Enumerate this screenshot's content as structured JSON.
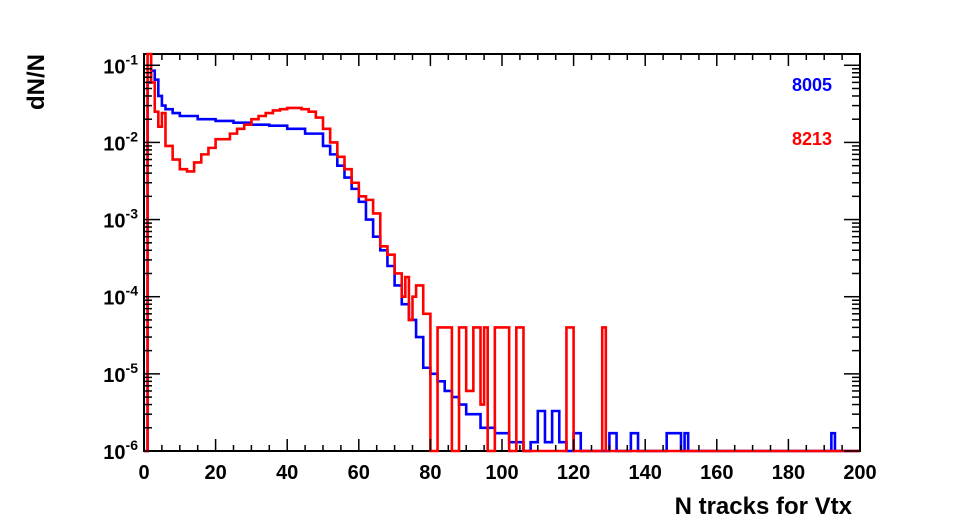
{
  "chart_data": {
    "type": "line",
    "title": "",
    "xlabel": "N tracks for Vtx",
    "ylabel": "dN/N",
    "xlim": [
      0,
      200
    ],
    "ylim": [
      1e-06,
      0.14
    ],
    "yscale": "log",
    "grid": false,
    "legend_position": "top-right",
    "x_ticks": [
      "0",
      "20",
      "40",
      "60",
      "80",
      "100",
      "120",
      "140",
      "160",
      "180",
      "200"
    ],
    "y_ticks": [
      {
        "base": "10",
        "exp": "-6"
      },
      {
        "base": "10",
        "exp": "-5"
      },
      {
        "base": "10",
        "exp": "-4"
      },
      {
        "base": "10",
        "exp": "-3"
      },
      {
        "base": "10",
        "exp": "-2"
      },
      {
        "base": "10",
        "exp": "-1"
      }
    ],
    "series": [
      {
        "name": "8005",
        "color": "#0000ff",
        "x": [
          0,
          1,
          2,
          3,
          4,
          5,
          6,
          8,
          10,
          15,
          20,
          25,
          30,
          35,
          40,
          45,
          50,
          52,
          54,
          56,
          58,
          60,
          62,
          64,
          66,
          68,
          70,
          72,
          74,
          76,
          78,
          80,
          82,
          84,
          86,
          88,
          90,
          92,
          94,
          96,
          98,
          100,
          102,
          104,
          106,
          108,
          110,
          112,
          114,
          116,
          118,
          120,
          122,
          124,
          126,
          128,
          130,
          132,
          134,
          136,
          138,
          140,
          144,
          146,
          150,
          151,
          152,
          160,
          170,
          180,
          191,
          192,
          193,
          200
        ],
        "y": [
          1e-06,
          0.06,
          0.085,
          0.065,
          0.04,
          0.03,
          0.027,
          0.024,
          0.022,
          0.02,
          0.019,
          0.018,
          0.017,
          0.0165,
          0.015,
          0.013,
          0.009,
          0.007,
          0.005,
          0.0035,
          0.0025,
          0.0017,
          0.001,
          0.0006,
          0.0004,
          0.00025,
          0.00014,
          8e-05,
          5e-05,
          3e-05,
          1.2e-05,
          1e-05,
          8e-06,
          6e-06,
          5e-06,
          4e-06,
          3e-06,
          3e-06,
          2e-06,
          2e-06,
          1.7e-06,
          1.7e-06,
          1.3e-06,
          1.3e-06,
          1e-06,
          1.3e-06,
          3.3e-06,
          1.3e-06,
          3.3e-06,
          1.3e-06,
          1e-06,
          1.7e-06,
          1e-06,
          1e-06,
          1e-06,
          1e-06,
          1.7e-06,
          1e-06,
          1e-06,
          1.7e-06,
          1e-06,
          1e-06,
          1e-06,
          1.7e-06,
          1e-06,
          1.7e-06,
          1e-06,
          1e-06,
          1e-06,
          1e-06,
          1e-06,
          1.7e-06,
          1e-06,
          1e-06
        ]
      },
      {
        "name": "8213",
        "color": "#ff0000",
        "x": [
          0,
          1,
          2,
          3,
          4,
          5,
          6,
          8,
          10,
          12,
          14,
          16,
          18,
          20,
          22,
          24,
          26,
          28,
          30,
          32,
          34,
          36,
          38,
          40,
          42,
          44,
          46,
          48,
          50,
          52,
          54,
          56,
          58,
          60,
          62,
          64,
          66,
          68,
          70,
          72,
          73,
          74,
          75,
          76,
          78,
          80,
          82,
          84,
          86,
          88,
          90,
          92,
          94,
          95,
          96,
          98,
          100,
          102,
          104,
          106,
          110,
          118,
          120,
          128,
          129,
          130,
          140,
          150,
          160,
          170,
          180,
          190,
          200
        ],
        "y": [
          1e-06,
          0.14,
          0.06,
          0.025,
          0.016,
          0.024,
          0.009,
          0.006,
          0.0045,
          0.0042,
          0.0055,
          0.007,
          0.0085,
          0.011,
          0.011,
          0.013,
          0.015,
          0.017,
          0.02,
          0.022,
          0.024,
          0.026,
          0.027,
          0.028,
          0.028,
          0.027,
          0.025,
          0.021,
          0.015,
          0.01,
          0.0065,
          0.0045,
          0.003,
          0.002,
          0.0018,
          0.0012,
          0.00045,
          0.00035,
          0.0002,
          0.0001,
          0.00018,
          5e-05,
          0.0001,
          0.00014,
          6e-05,
          1e-06,
          4e-05,
          4e-05,
          1e-06,
          4e-05,
          6e-06,
          4e-05,
          4e-06,
          4e-05,
          1e-06,
          4e-05,
          4e-05,
          1e-06,
          4e-05,
          1e-06,
          1e-06,
          4e-05,
          1e-06,
          4e-05,
          1e-06,
          1e-06,
          1e-06,
          1e-06,
          1e-06,
          1e-06,
          1e-06,
          1e-06,
          1e-06
        ]
      }
    ]
  }
}
